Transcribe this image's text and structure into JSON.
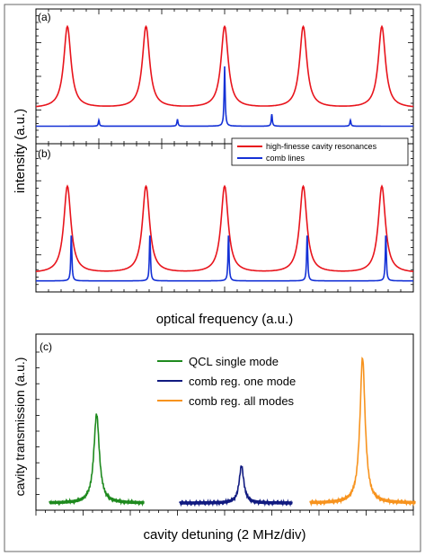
{
  "chart_data": [
    {
      "type": "line",
      "panel_label": "(a)",
      "xlabel": "",
      "ylabel": "",
      "series": [
        {
          "name": "high-finesse cavity resonances",
          "color": "#e8141c",
          "peak_positions": [
            1,
            2,
            3,
            4,
            5
          ],
          "peak_height": 1.0,
          "baseline": 0.18,
          "linewidth": 0.055
        },
        {
          "name": "comb lines",
          "color": "#1431d6",
          "peak_positions": [
            1.4,
            2.4,
            3.0,
            3.6,
            4.6
          ],
          "peak_heights": [
            0.06,
            0.07,
            0.6,
            0.12,
            0.06
          ],
          "baseline": 0.0
        }
      ],
      "xlim": [
        0.6,
        5.4
      ],
      "ylim": [
        -0.05,
        1.05
      ]
    },
    {
      "type": "line",
      "panel_label": "(b)",
      "xlabel": "optical frequency (a.u.)",
      "ylabel": "intensity (a.u.)",
      "legend": [
        "high-finesse cavity resonances",
        "comb lines"
      ],
      "legend_position": "top-right",
      "series": [
        {
          "name": "high-finesse cavity resonances",
          "color": "#e8141c",
          "peak_positions": [
            1,
            2,
            3,
            4,
            5
          ],
          "peak_height": 1.0,
          "baseline": 0.08,
          "linewidth": 0.055
        },
        {
          "name": "comb lines",
          "color": "#1431d6",
          "peak_positions": [
            1.05,
            2.05,
            3.05,
            4.05,
            5.05
          ],
          "peak_height": 0.5,
          "baseline": 0.0
        }
      ],
      "xlim": [
        0.6,
        5.4
      ],
      "ylim": [
        -0.05,
        1.05
      ]
    },
    {
      "type": "line",
      "panel_label": "(c)",
      "xlabel": "cavity detuning (2 MHz/div)",
      "ylabel": "cavity transmission (a.u.)",
      "legend": [
        "QCL single mode",
        "comb reg. one mode",
        "comb reg. all modes"
      ],
      "legend_position": "top-center",
      "series": [
        {
          "name": "QCL single mode",
          "color": "#1e8a1e",
          "x_range": [
            0,
            10
          ],
          "peak_x": 5.0,
          "peak_height": 0.6,
          "linewidth": 0.35
        },
        {
          "name": "comb reg. one mode",
          "color": "#101a80",
          "x_range": [
            0,
            10
          ],
          "peak_x": 5.5,
          "peak_height": 0.25,
          "linewidth": 0.25
        },
        {
          "name": "comb reg. all modes",
          "color": "#f7931e",
          "x_range": [
            0,
            10
          ],
          "peak_x": 5.0,
          "peak_height": 0.98,
          "linewidth": 0.3
        }
      ],
      "ylim": [
        -0.03,
        1.05
      ]
    }
  ]
}
